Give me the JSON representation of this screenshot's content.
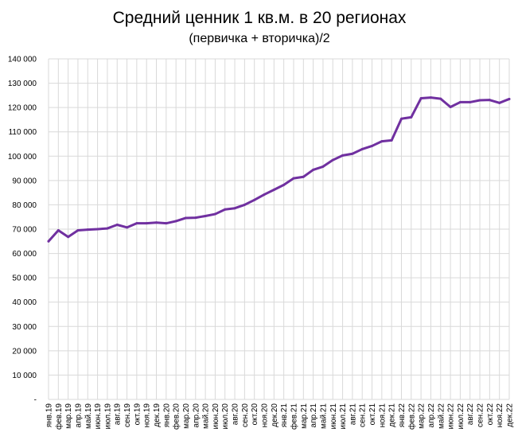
{
  "chart_data": {
    "type": "line",
    "title": "Средний ценник 1 кв.м. в 20 регионах",
    "subtitle": "(первичка + вторичка)/2",
    "xlabel": "",
    "ylabel": "",
    "ylim": [
      0,
      140000
    ],
    "y_ticks": [
      "-",
      "10 000",
      "20 000",
      "30 000",
      "40 000",
      "50 000",
      "60 000",
      "70 000",
      "80 000",
      "90 000",
      "100 000",
      "110 000",
      "120 000",
      "130 000",
      "140 000"
    ],
    "grid": true,
    "legend": "none",
    "categories": [
      "янв.19",
      "фев.19",
      "мар.19",
      "апр.19",
      "май.19",
      "июн.19",
      "июл.19",
      "авг.19",
      "сен.19",
      "окт.19",
      "ноя.19",
      "дек.19",
      "янв.20",
      "фев.20",
      "мар.20",
      "апр.20",
      "май.20",
      "июн.20",
      "июл.20",
      "авг.20",
      "сен.20",
      "окт.20",
      "ноя.20",
      "дек.20",
      "янв.21",
      "фев.21",
      "мар.21",
      "апр.21",
      "май.21",
      "июн.21",
      "июл.21",
      "авг.21",
      "сен.21",
      "окт.21",
      "ноя.21",
      "дек.21",
      "янв.22",
      "фев.22",
      "мар.22",
      "апр.22",
      "май.22",
      "июн.22",
      "июл.22",
      "авг.22",
      "сен.22",
      "окт.22",
      "ноя.22",
      "дек.22"
    ],
    "series": [
      {
        "color": "#7030a0",
        "values": [
          65000,
          69500,
          66800,
          69500,
          69800,
          70000,
          70300,
          71800,
          70700,
          72400,
          72400,
          72700,
          72400,
          73300,
          74600,
          74700,
          75400,
          76200,
          78100,
          78600,
          80000,
          82000,
          84200,
          86200,
          88200,
          90900,
          91500,
          94400,
          95700,
          98400,
          100300,
          101000,
          102900,
          104200,
          106100,
          106500,
          115400,
          116000,
          123800,
          124100,
          123600,
          120200,
          122200,
          122200,
          123000,
          123100,
          121900,
          123500
        ]
      }
    ]
  }
}
